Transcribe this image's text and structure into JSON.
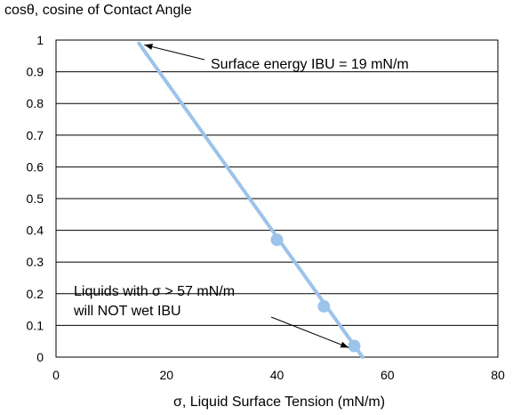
{
  "chart_data": {
    "type": "scatter",
    "ylabel": "cosθ, cosine of Contact Angle",
    "xlabel": "σ, Liquid Surface Tension  (mN/m)",
    "xlim": [
      0,
      80
    ],
    "ylim": [
      0,
      1
    ],
    "x_ticks": [
      "0",
      "20",
      "40",
      "60",
      "80"
    ],
    "y_ticks": [
      "0",
      "0.1",
      "0.2",
      "0.3",
      "0.4",
      "0.5",
      "0.6",
      "0.7",
      "0.8",
      "0.9",
      "1"
    ],
    "grid": "horizontal",
    "series": [
      {
        "points": [
          {
            "x": 40,
            "y": 0.37
          },
          {
            "x": 48.5,
            "y": 0.16
          },
          {
            "x": 54,
            "y": 0.035
          }
        ],
        "fit_line": {
          "x": [
            15,
            55.5
          ],
          "y": [
            0.99,
            0
          ]
        },
        "color": "#9cc3ea"
      }
    ],
    "annotations": [
      {
        "text": "Surface energy IBU = 19 mN/m",
        "points_to": {
          "x": 16,
          "y": 0.985
        }
      },
      {
        "lines": [
          "Liquids with σ > 57 mN/m",
          "will NOT wet IBU"
        ],
        "points_to": {
          "x": 53,
          "y": 0.03
        }
      }
    ]
  }
}
